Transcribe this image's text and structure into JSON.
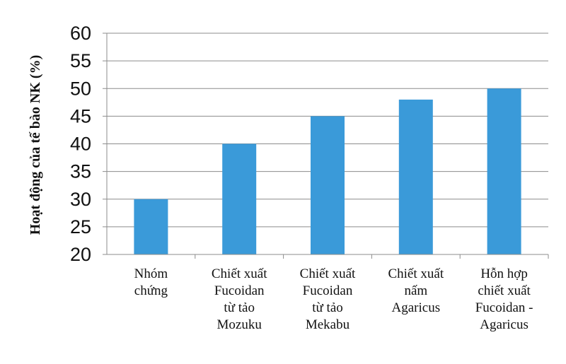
{
  "chart_data": {
    "type": "bar",
    "ylabel": "Hoạt động của tế bào NK (%)",
    "ylim": [
      20,
      60
    ],
    "yticks": [
      20,
      25,
      30,
      35,
      40,
      45,
      50,
      55,
      60
    ],
    "grid": true,
    "bar_color": "#3a9ad9",
    "categories": [
      [
        "Nhóm",
        "chứng"
      ],
      [
        "Chiết xuất",
        "Fucoidan",
        "từ tảo",
        "Mozuku"
      ],
      [
        "Chiết xuất",
        "Fucoidan",
        "từ tảo",
        "Mekabu"
      ],
      [
        "Chiết xuất",
        "nấm",
        "Agaricus"
      ],
      [
        "Hỗn hợp",
        "chiết xuất",
        "Fucoidan -",
        "Agaricus"
      ]
    ],
    "values": [
      30,
      40,
      45,
      48,
      50
    ]
  }
}
